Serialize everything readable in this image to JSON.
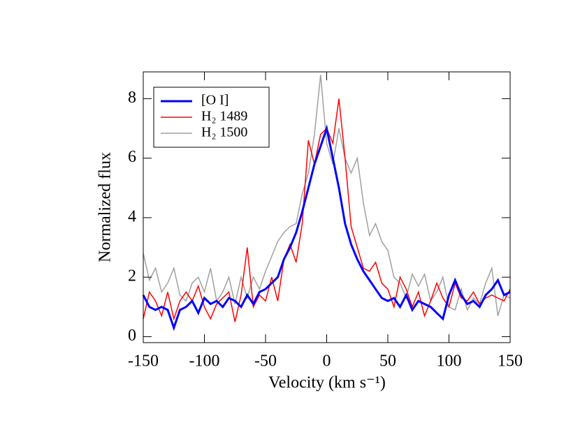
{
  "chart_data": {
    "type": "line",
    "xlabel": "Velocity (km s⁻¹)",
    "ylabel": "Normalized flux",
    "x": [
      -150,
      -145,
      -140,
      -135,
      -130,
      -125,
      -120,
      -115,
      -110,
      -105,
      -100,
      -95,
      -90,
      -85,
      -80,
      -75,
      -70,
      -65,
      -60,
      -55,
      -50,
      -45,
      -40,
      -35,
      -30,
      -25,
      -20,
      -15,
      -10,
      -5,
      0,
      5,
      10,
      15,
      20,
      25,
      30,
      35,
      40,
      45,
      50,
      55,
      60,
      65,
      70,
      75,
      80,
      85,
      90,
      95,
      100,
      105,
      110,
      115,
      120,
      125,
      130,
      135,
      140,
      145,
      150
    ],
    "series": [
      {
        "name": "[O I]",
        "color": "#0000ff",
        "values": [
          1.4,
          1.0,
          0.9,
          1.0,
          0.9,
          0.3,
          0.9,
          1.0,
          1.2,
          0.8,
          1.3,
          1.1,
          1.2,
          1.0,
          1.3,
          1.2,
          1.0,
          1.4,
          1.1,
          1.5,
          1.6,
          1.8,
          2.0,
          2.6,
          3.0,
          3.5,
          4.2,
          5.0,
          5.8,
          6.4,
          7.0,
          6.0,
          5.0,
          3.8,
          3.1,
          2.6,
          2.2,
          1.9,
          1.6,
          1.3,
          1.2,
          1.3,
          1.0,
          1.4,
          0.9,
          1.2,
          1.1,
          1.0,
          0.8,
          0.6,
          1.4,
          1.9,
          1.4,
          1.1,
          1.2,
          1.0,
          1.4,
          1.6,
          1.9,
          1.4,
          1.5
        ]
      },
      {
        "name": "H₂ 1489",
        "color": "#ff0000",
        "values": [
          0.6,
          1.5,
          1.2,
          0.7,
          1.5,
          0.6,
          1.2,
          1.5,
          1.2,
          1.7,
          1.0,
          0.6,
          1.1,
          1.3,
          1.5,
          0.5,
          1.4,
          3.0,
          1.0,
          1.4,
          1.2,
          2.0,
          1.2,
          2.6,
          3.1,
          2.5,
          3.8,
          6.6,
          5.8,
          6.8,
          7.0,
          6.5,
          8.0,
          6.0,
          3.7,
          3.0,
          2.3,
          2.2,
          2.5,
          1.8,
          1.6,
          1.0,
          2.0,
          1.6,
          1.0,
          1.5,
          0.7,
          1.2,
          1.8,
          1.3,
          1.0,
          1.8,
          1.3,
          1.2,
          1.5,
          1.1,
          1.3,
          1.4,
          1.3,
          1.2,
          1.6
        ]
      },
      {
        "name": "H₂ 1500",
        "color": "#a0a0a0",
        "values": [
          2.8,
          1.9,
          2.3,
          1.5,
          1.8,
          2.3,
          1.4,
          1.2,
          1.8,
          2.0,
          1.5,
          2.3,
          1.2,
          1.5,
          2.0,
          1.1,
          2.0,
          1.3,
          2.0,
          1.6,
          2.2,
          2.7,
          3.2,
          3.5,
          3.7,
          3.8,
          4.8,
          5.5,
          6.8,
          8.8,
          6.5,
          5.8,
          7.0,
          6.0,
          5.5,
          6.0,
          4.5,
          3.4,
          3.8,
          3.2,
          2.9,
          2.0,
          1.8,
          1.3,
          2.1,
          1.7,
          2.1,
          1.2,
          1.5,
          2.0,
          1.0,
          0.9,
          1.6,
          0.9,
          1.3,
          1.1,
          1.8,
          2.3,
          0.7,
          1.4,
          1.3
        ]
      }
    ],
    "xlim": [
      -150,
      150
    ],
    "xticks": [
      -150,
      -100,
      -50,
      0,
      50,
      100,
      150
    ],
    "ylim": [
      -0.2,
      8.9
    ],
    "yticks": [
      0,
      2,
      4,
      6,
      8
    ],
    "legend": "upper left"
  }
}
